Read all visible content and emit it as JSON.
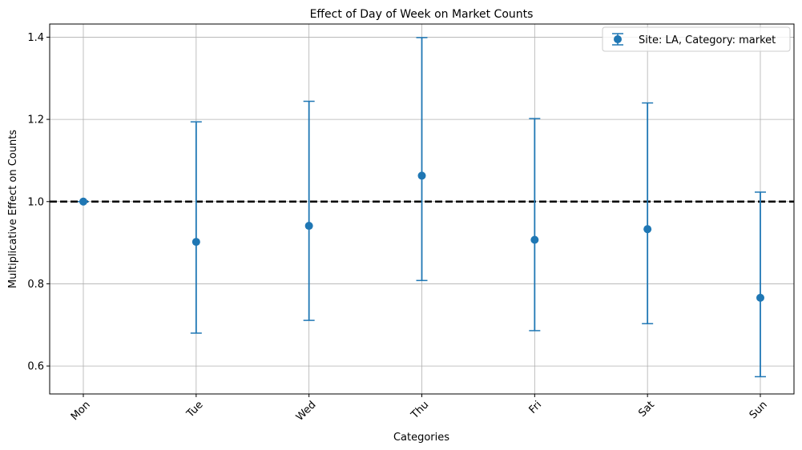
{
  "chart_data": {
    "type": "errorbar",
    "title": "Effect of Day of Week on Market Counts",
    "xlabel": "Categories",
    "ylabel": "Multiplicative Effect on Counts",
    "categories": [
      "Mon",
      "Tue",
      "Wed",
      "Thu",
      "Fri",
      "Sat",
      "Sun"
    ],
    "series": [
      {
        "name": "Site: LA, Category: market",
        "values": [
          1.0,
          0.902,
          0.941,
          1.063,
          0.907,
          0.933,
          0.766
        ],
        "lower": [
          1.0,
          0.68,
          0.711,
          0.808,
          0.686,
          0.703,
          0.574
        ],
        "upper": [
          1.0,
          1.194,
          1.244,
          1.399,
          1.202,
          1.24,
          1.023
        ]
      }
    ],
    "reference_line": 1.0,
    "ylim": [
      0.532,
      1.432
    ],
    "yticks": [
      "0.6",
      "0.8",
      "1.0",
      "1.2",
      "1.4"
    ],
    "grid": true,
    "legend_position": "top-right",
    "colors": {
      "series": "#1f77b4",
      "reference": "#000000",
      "grid": "#b0b0b0"
    }
  }
}
